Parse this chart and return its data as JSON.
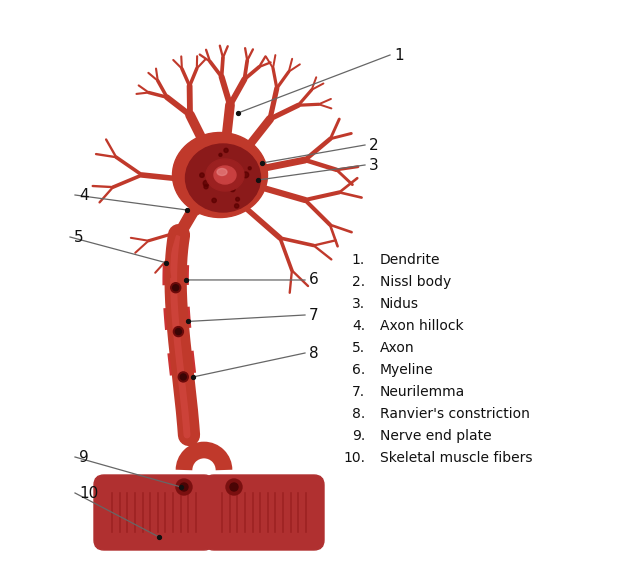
{
  "background_color": "#ffffff",
  "nc": "#c0392b",
  "nc_bright": "#e05050",
  "nc_dark": "#8b1a1a",
  "nc_mid": "#a52020",
  "soma_body": "#c0392b",
  "soma_inner": "#8b1a1a",
  "nucleus_col": "#6b1010",
  "nucleus_inner_col": "#e07070",
  "muscle_col": "#b03030",
  "muscle_dark": "#7a1515",
  "muscle_stripe": "#8b2020",
  "line_color": "#666666",
  "dot_color": "#222222",
  "label_color": "#111111",
  "legend_items": [
    "Dendrite",
    "Nissl body",
    "Nidus",
    "Axon hillock",
    "Axon",
    "Myeline",
    "Neurilemma",
    "Ranvier's constriction",
    "Nerve end plate",
    "Skeletal muscle fibers"
  ],
  "figsize": [
    6.26,
    5.64
  ],
  "dpi": 100
}
